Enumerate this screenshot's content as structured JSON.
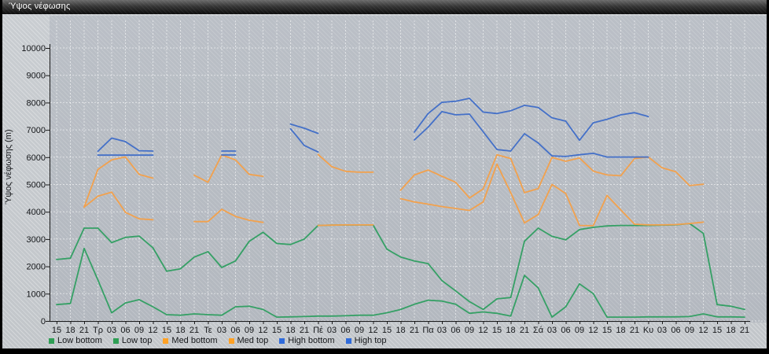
{
  "window_title": "Ύψος νέφωσης",
  "chart_data": {
    "type": "line",
    "title": "Ύψος νέφωσης",
    "ylabel": "Ύψος νέφωσης (m)",
    "ylim": [
      0,
      10000
    ],
    "ytick_step": 1000,
    "grid": true,
    "legend_position": "bottom",
    "x_labels": [
      "15",
      "18",
      "21",
      "Τρ",
      "03",
      "06",
      "09",
      "12",
      "15",
      "18",
      "21",
      "Τε",
      "03",
      "06",
      "09",
      "12",
      "15",
      "18",
      "21",
      "Πέ",
      "03",
      "06",
      "09",
      "12",
      "15",
      "18",
      "21",
      "Πα",
      "03",
      "06",
      "09",
      "12",
      "15",
      "18",
      "21",
      "Σά",
      "03",
      "06",
      "09",
      "12",
      "15",
      "18",
      "21",
      "Κυ",
      "03",
      "06",
      "09",
      "12",
      "15",
      "18",
      "21"
    ],
    "series": [
      {
        "name": "Low bottom",
        "color": "#35a065",
        "legend_color": "#2e9e54",
        "values": [
          600,
          640,
          2660,
          1500,
          300,
          660,
          780,
          520,
          230,
          210,
          260,
          230,
          210,
          520,
          540,
          420,
          140,
          150,
          160,
          180,
          180,
          190,
          210,
          210,
          300,
          420,
          610,
          760,
          730,
          610,
          280,
          330,
          280,
          180,
          1670,
          1210,
          140,
          520,
          1360,
          1000,
          140,
          140,
          140,
          150,
          150,
          150,
          160,
          260,
          150,
          150,
          140
        ]
      },
      {
        "name": "Low top",
        "color": "#35a065",
        "legend_color": "#2e9e54",
        "values": [
          2250,
          2300,
          3400,
          3400,
          2870,
          3060,
          3110,
          2680,
          1820,
          1910,
          2340,
          2540,
          1960,
          2200,
          2920,
          3250,
          2840,
          2800,
          3000,
          3500,
          3510,
          3515,
          3515,
          3515,
          2630,
          2340,
          2200,
          2100,
          1480,
          1100,
          710,
          420,
          810,
          860,
          2920,
          3400,
          3100,
          2970,
          3350,
          3430,
          3480,
          3500,
          3500,
          3500,
          3510,
          3520,
          3570,
          3210,
          600,
          540,
          420
        ]
      },
      {
        "name": "Med bottom",
        "color": "#f2a14d",
        "legend_color": "#ffa125",
        "values": [
          null,
          null,
          4170,
          4570,
          4720,
          3980,
          3740,
          3710,
          null,
          null,
          3640,
          3640,
          4090,
          3830,
          3690,
          3610,
          null,
          null,
          null,
          3500,
          3510,
          3520,
          3520,
          3520,
          null,
          4480,
          4360,
          4280,
          4190,
          4120,
          4050,
          4360,
          5750,
          4700,
          3590,
          3900,
          5000,
          4670,
          3500,
          3490,
          4600,
          4070,
          3545,
          3520,
          3520,
          3530,
          3570,
          3620,
          null,
          null,
          null
        ]
      },
      {
        "name": "Med top",
        "color": "#f2a14d",
        "legend_color": "#ffa125",
        "values": [
          null,
          null,
          4170,
          5550,
          5900,
          6010,
          5370,
          5230,
          null,
          null,
          5340,
          5080,
          6080,
          5900,
          5370,
          5300,
          null,
          null,
          null,
          6100,
          5650,
          5480,
          5450,
          5450,
          null,
          4790,
          5350,
          5530,
          5300,
          5080,
          4505,
          4840,
          6090,
          5950,
          4700,
          4850,
          5990,
          5850,
          5970,
          5490,
          5350,
          5320,
          5950,
          6005,
          5610,
          5465,
          4960,
          5010,
          null,
          null,
          null
        ]
      },
      {
        "name": "High bottom",
        "color": "#4470c8",
        "legend_color": "#2f6bdb",
        "values": [
          null,
          null,
          null,
          6075,
          6075,
          6075,
          6075,
          6075,
          null,
          null,
          null,
          null,
          6080,
          6080,
          null,
          null,
          null,
          7040,
          6430,
          6190,
          null,
          null,
          null,
          null,
          null,
          null,
          6630,
          7100,
          7670,
          7550,
          7580,
          6930,
          6280,
          6225,
          6860,
          6520,
          6045,
          6025,
          6090,
          6140,
          6005,
          6005,
          6005,
          6005,
          null,
          null,
          null,
          null,
          null,
          null,
          null
        ]
      },
      {
        "name": "High top",
        "color": "#4470c8",
        "legend_color": "#2f6bdb",
        "values": [
          null,
          null,
          null,
          6215,
          6700,
          6570,
          6235,
          6225,
          null,
          null,
          null,
          null,
          6225,
          6225,
          null,
          null,
          null,
          7210,
          7060,
          6870,
          null,
          null,
          null,
          null,
          null,
          null,
          6920,
          7600,
          8010,
          8050,
          8155,
          7650,
          7600,
          7700,
          7900,
          7820,
          7440,
          7320,
          6620,
          7260,
          7390,
          7550,
          7630,
          7490,
          null,
          null,
          null,
          null,
          null,
          null,
          null
        ]
      }
    ]
  }
}
